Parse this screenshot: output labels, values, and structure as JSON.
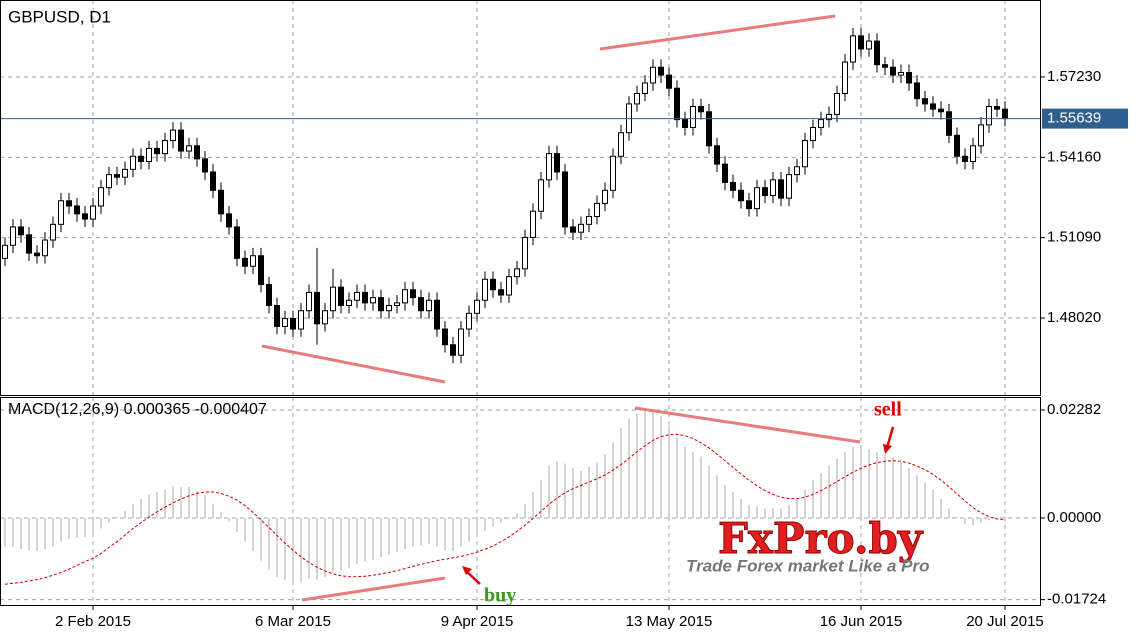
{
  "chart_data": [
    {
      "type": "candlestick",
      "title": "GBPUSD, D1",
      "categories": [
        null,
        null,
        null,
        null,
        null,
        null,
        null,
        null,
        null,
        null,
        null,
        "2 Feb 2015",
        null,
        null,
        null,
        null,
        null,
        null,
        null,
        null,
        null,
        null,
        null,
        null,
        null,
        null,
        null,
        null,
        null,
        null,
        null,
        null,
        null,
        null,
        null,
        null,
        "6 Mar 2015",
        null,
        null,
        null,
        null,
        null,
        null,
        null,
        null,
        null,
        null,
        null,
        null,
        null,
        null,
        null,
        null,
        null,
        null,
        null,
        null,
        null,
        null,
        "9 Apr 2015",
        null,
        null,
        null,
        null,
        null,
        null,
        null,
        null,
        null,
        null,
        null,
        null,
        null,
        null,
        null,
        null,
        null,
        null,
        null,
        null,
        null,
        null,
        null,
        "13 May 2015",
        null,
        null,
        null,
        null,
        null,
        null,
        null,
        null,
        null,
        null,
        null,
        null,
        null,
        null,
        null,
        null,
        null,
        null,
        null,
        null,
        null,
        null,
        null,
        "16 Jun 2015",
        null,
        null,
        null,
        null,
        null,
        null,
        null,
        null,
        null,
        null,
        null,
        null,
        null,
        null,
        null,
        null,
        null,
        "20 Jul 2015"
      ],
      "open": [
        1.503,
        1.508,
        1.515,
        1.512,
        1.505,
        1.504,
        1.51,
        1.516,
        1.525,
        1.523,
        1.52,
        1.518,
        1.523,
        1.53,
        1.535,
        1.534,
        1.537,
        1.542,
        1.54,
        1.545,
        1.543,
        1.548,
        1.552,
        1.544,
        1.546,
        1.541,
        1.536,
        1.529,
        1.52,
        1.515,
        1.503,
        1.5,
        1.504,
        1.493,
        1.485,
        1.477,
        1.48,
        1.476,
        1.483,
        1.49,
        1.478,
        1.483,
        1.492,
        1.485,
        1.487,
        1.49,
        1.486,
        1.488,
        1.483,
        1.485,
        1.486,
        1.491,
        1.488,
        1.483,
        1.487,
        1.476,
        1.47,
        1.466,
        1.476,
        1.482,
        1.487,
        1.495,
        1.491,
        1.489,
        1.496,
        1.499,
        1.511,
        1.521,
        1.533,
        1.543,
        1.536,
        1.515,
        1.513,
        1.516,
        1.519,
        1.524,
        1.529,
        1.542,
        1.551,
        1.562,
        1.566,
        1.57,
        1.576,
        1.573,
        1.568,
        1.556,
        1.553,
        1.561,
        1.559,
        1.546,
        1.539,
        1.532,
        1.529,
        1.525,
        1.522,
        1.53,
        1.527,
        1.533,
        1.526,
        1.535,
        1.538,
        1.548,
        1.553,
        1.556,
        1.558,
        1.566,
        1.578,
        1.588,
        1.583,
        1.586,
        1.577,
        1.576,
        1.573,
        1.574,
        1.57,
        1.564,
        1.562,
        1.56,
        1.559,
        1.55,
        1.542,
        1.54,
        1.546,
        1.554,
        1.561,
        1.56
      ],
      "high": [
        1.511,
        1.518,
        1.518,
        1.515,
        1.508,
        1.513,
        1.519,
        1.528,
        1.528,
        1.526,
        1.523,
        1.526,
        1.533,
        1.538,
        1.538,
        1.54,
        1.545,
        1.545,
        1.548,
        1.548,
        1.551,
        1.555,
        1.555,
        1.549,
        1.549,
        1.544,
        1.539,
        1.532,
        1.523,
        1.518,
        1.506,
        1.507,
        1.507,
        1.496,
        1.488,
        1.483,
        1.483,
        1.486,
        1.493,
        1.507,
        1.486,
        1.499,
        1.495,
        1.49,
        1.493,
        1.493,
        1.491,
        1.491,
        1.488,
        1.489,
        1.494,
        1.494,
        1.491,
        1.49,
        1.49,
        1.479,
        1.473,
        1.479,
        1.485,
        1.49,
        1.498,
        1.498,
        1.494,
        1.499,
        1.502,
        1.514,
        1.524,
        1.536,
        1.546,
        1.546,
        1.539,
        1.518,
        1.519,
        1.522,
        1.527,
        1.532,
        1.545,
        1.554,
        1.565,
        1.569,
        1.573,
        1.579,
        1.579,
        1.576,
        1.571,
        1.559,
        1.564,
        1.564,
        1.562,
        1.549,
        1.542,
        1.535,
        1.532,
        1.528,
        1.533,
        1.533,
        1.536,
        1.536,
        1.538,
        1.541,
        1.551,
        1.556,
        1.559,
        1.561,
        1.569,
        1.581,
        1.591,
        1.591,
        1.589,
        1.589,
        1.58,
        1.579,
        1.577,
        1.577,
        1.573,
        1.567,
        1.565,
        1.563,
        1.562,
        1.553,
        1.545,
        1.549,
        1.557,
        1.564,
        1.564,
        1.563
      ],
      "low": [
        1.5,
        1.505,
        1.509,
        1.502,
        1.501,
        1.501,
        1.507,
        1.513,
        1.52,
        1.517,
        1.515,
        1.515,
        1.52,
        1.527,
        1.531,
        1.531,
        1.534,
        1.537,
        1.537,
        1.54,
        1.54,
        1.545,
        1.541,
        1.541,
        1.538,
        1.533,
        1.526,
        1.517,
        1.512,
        1.5,
        1.497,
        1.497,
        1.49,
        1.482,
        1.474,
        1.474,
        1.473,
        1.473,
        1.48,
        1.47,
        1.475,
        1.48,
        1.482,
        1.482,
        1.484,
        1.483,
        1.483,
        1.48,
        1.48,
        1.482,
        1.483,
        1.485,
        1.48,
        1.48,
        1.473,
        1.467,
        1.463,
        1.463,
        1.473,
        1.479,
        1.484,
        1.488,
        1.486,
        1.486,
        1.493,
        1.496,
        1.508,
        1.518,
        1.53,
        1.533,
        1.512,
        1.51,
        1.51,
        1.513,
        1.516,
        1.521,
        1.526,
        1.539,
        1.548,
        1.559,
        1.563,
        1.567,
        1.57,
        1.565,
        1.553,
        1.55,
        1.55,
        1.556,
        1.543,
        1.536,
        1.529,
        1.526,
        1.522,
        1.519,
        1.519,
        1.524,
        1.524,
        1.523,
        1.523,
        1.532,
        1.535,
        1.545,
        1.55,
        1.553,
        1.555,
        1.563,
        1.575,
        1.58,
        1.58,
        1.574,
        1.573,
        1.57,
        1.57,
        1.567,
        1.561,
        1.559,
        1.557,
        1.556,
        1.547,
        1.539,
        1.537,
        1.537,
        1.543,
        1.551,
        1.557,
        1.5534
      ],
      "close": [
        1.508,
        1.515,
        1.512,
        1.505,
        1.504,
        1.51,
        1.516,
        1.525,
        1.523,
        1.52,
        1.518,
        1.523,
        1.53,
        1.535,
        1.534,
        1.537,
        1.542,
        1.54,
        1.545,
        1.543,
        1.548,
        1.552,
        1.544,
        1.546,
        1.541,
        1.536,
        1.529,
        1.52,
        1.515,
        1.503,
        1.5,
        1.504,
        1.493,
        1.485,
        1.477,
        1.48,
        1.476,
        1.483,
        1.49,
        1.478,
        1.483,
        1.492,
        1.485,
        1.487,
        1.49,
        1.486,
        1.488,
        1.483,
        1.485,
        1.486,
        1.491,
        1.488,
        1.483,
        1.487,
        1.476,
        1.47,
        1.466,
        1.476,
        1.482,
        1.487,
        1.495,
        1.491,
        1.489,
        1.496,
        1.499,
        1.511,
        1.521,
        1.533,
        1.543,
        1.536,
        1.515,
        1.513,
        1.516,
        1.519,
        1.524,
        1.529,
        1.542,
        1.551,
        1.562,
        1.566,
        1.57,
        1.576,
        1.573,
        1.568,
        1.556,
        1.553,
        1.561,
        1.559,
        1.546,
        1.539,
        1.532,
        1.529,
        1.525,
        1.522,
        1.53,
        1.527,
        1.533,
        1.526,
        1.535,
        1.538,
        1.548,
        1.553,
        1.556,
        1.558,
        1.566,
        1.578,
        1.588,
        1.583,
        1.586,
        1.577,
        1.576,
        1.573,
        1.574,
        1.57,
        1.564,
        1.562,
        1.56,
        1.559,
        1.55,
        1.542,
        1.54,
        1.546,
        1.554,
        1.561,
        1.56,
        1.55639
      ],
      "color": "#000000",
      "ylim": [
        1.4508,
        1.6017
      ],
      "yticks": [
        {
          "value": 1.4802,
          "label": "1.48020"
        },
        {
          "value": 1.5109,
          "label": "1.51090"
        },
        {
          "value": 1.5416,
          "label": "1.54160"
        },
        {
          "value": 1.5723,
          "label": "1.57230"
        }
      ],
      "current_price": 1.55639,
      "current_price_color": "#2f5f8f",
      "grid": true
    },
    {
      "type": "macd",
      "title": "MACD(12,26,9) 0.000365 -0.000407",
      "histogram": {
        "color": "#c4c4c4",
        "values": [
          -0.006,
          -0.0062,
          -0.0065,
          -0.0068,
          -0.007,
          -0.0066,
          -0.006,
          -0.005,
          -0.0045,
          -0.0042,
          -0.004,
          -0.0032,
          -0.0022,
          -0.001,
          0.0002,
          0.0015,
          0.003,
          0.004,
          0.005,
          0.0055,
          0.006,
          0.0068,
          0.0065,
          0.0066,
          0.0058,
          0.0048,
          0.003,
          0.0012,
          -0.0008,
          -0.003,
          -0.005,
          -0.007,
          -0.009,
          -0.011,
          -0.0125,
          -0.0132,
          -0.0138,
          -0.0135,
          -0.0128,
          -0.013,
          -0.0125,
          -0.0115,
          -0.011,
          -0.0105,
          -0.0098,
          -0.0092,
          -0.0088,
          -0.0082,
          -0.0078,
          -0.0072,
          -0.0065,
          -0.006,
          -0.0058,
          -0.0055,
          -0.006,
          -0.0068,
          -0.007,
          -0.006,
          -0.005,
          -0.004,
          -0.0028,
          -0.0018,
          -0.001,
          -0.0002,
          0.001,
          0.003,
          0.0055,
          0.008,
          0.011,
          0.012,
          0.0115,
          0.0105,
          0.01,
          0.0108,
          0.0118,
          0.0135,
          0.016,
          0.019,
          0.021,
          0.022,
          0.0228,
          0.0225,
          0.0215,
          0.0195,
          0.017,
          0.015,
          0.014,
          0.013,
          0.011,
          0.009,
          0.007,
          0.0055,
          0.004,
          0.0028,
          0.0025,
          0.002,
          0.0022,
          0.002,
          0.0028,
          0.004,
          0.006,
          0.008,
          0.0095,
          0.011,
          0.0125,
          0.014,
          0.015,
          0.0148,
          0.0145,
          0.014,
          0.0135,
          0.0128,
          0.0118,
          0.0105,
          0.009,
          0.0075,
          0.006,
          0.004,
          0.002,
          0.0002,
          -0.0012,
          -0.0015,
          -0.001,
          -0.0004,
          0.0,
          0.000365
        ]
      },
      "signal": {
        "color": "#cc0000",
        "values": [
          -0.014,
          -0.0138,
          -0.0136,
          -0.0133,
          -0.013,
          -0.0126,
          -0.0121,
          -0.0115,
          -0.0108,
          -0.01,
          -0.0092,
          -0.0085,
          -0.0075,
          -0.0062,
          -0.005,
          -0.0036,
          -0.0022,
          -0.001,
          0.0002,
          0.0013,
          0.0023,
          0.0032,
          0.004,
          0.0047,
          0.0052,
          0.0055,
          0.0055,
          0.0052,
          0.0046,
          0.0038,
          0.0026,
          0.0012,
          -0.0004,
          -0.002,
          -0.0037,
          -0.0053,
          -0.0068,
          -0.0082,
          -0.0094,
          -0.0104,
          -0.0112,
          -0.0118,
          -0.0122,
          -0.0124,
          -0.0124,
          -0.0123,
          -0.0121,
          -0.0118,
          -0.0115,
          -0.0111,
          -0.0107,
          -0.0102,
          -0.0098,
          -0.0094,
          -0.009,
          -0.0087,
          -0.0084,
          -0.0081,
          -0.0077,
          -0.0072,
          -0.0066,
          -0.0059,
          -0.005,
          -0.004,
          -0.0028,
          -0.0015,
          -0.0001,
          0.0014,
          0.0029,
          0.0042,
          0.0053,
          0.0062,
          0.0069,
          0.0076,
          0.0083,
          0.0091,
          0.0101,
          0.0113,
          0.0126,
          0.014,
          0.0153,
          0.0164,
          0.0172,
          0.0176,
          0.0177,
          0.0174,
          0.0168,
          0.0159,
          0.0148,
          0.0135,
          0.0121,
          0.0107,
          0.0093,
          0.008,
          0.0068,
          0.0058,
          0.005,
          0.0044,
          0.0041,
          0.0041,
          0.0044,
          0.005,
          0.0058,
          0.0067,
          0.0077,
          0.0087,
          0.0097,
          0.0105,
          0.0112,
          0.0117,
          0.012,
          0.0121,
          0.012,
          0.0116,
          0.011,
          0.0102,
          0.0092,
          0.008,
          0.0066,
          0.0051,
          0.0036,
          0.0022,
          0.0011,
          0.0003,
          -0.0002,
          -0.000407
        ]
      },
      "ylim": [
        -0.01838,
        0.02557
      ],
      "yticks": [
        -0.01724,
        {
          "value": 0,
          "label": "0.00000"
        },
        0.02282
      ],
      "grid": true
    }
  ],
  "annotations": {
    "buy": "buy",
    "sell": "sell",
    "watermark": "FxPro.by",
    "slogan": "Trade Forex market Like a Pro"
  }
}
